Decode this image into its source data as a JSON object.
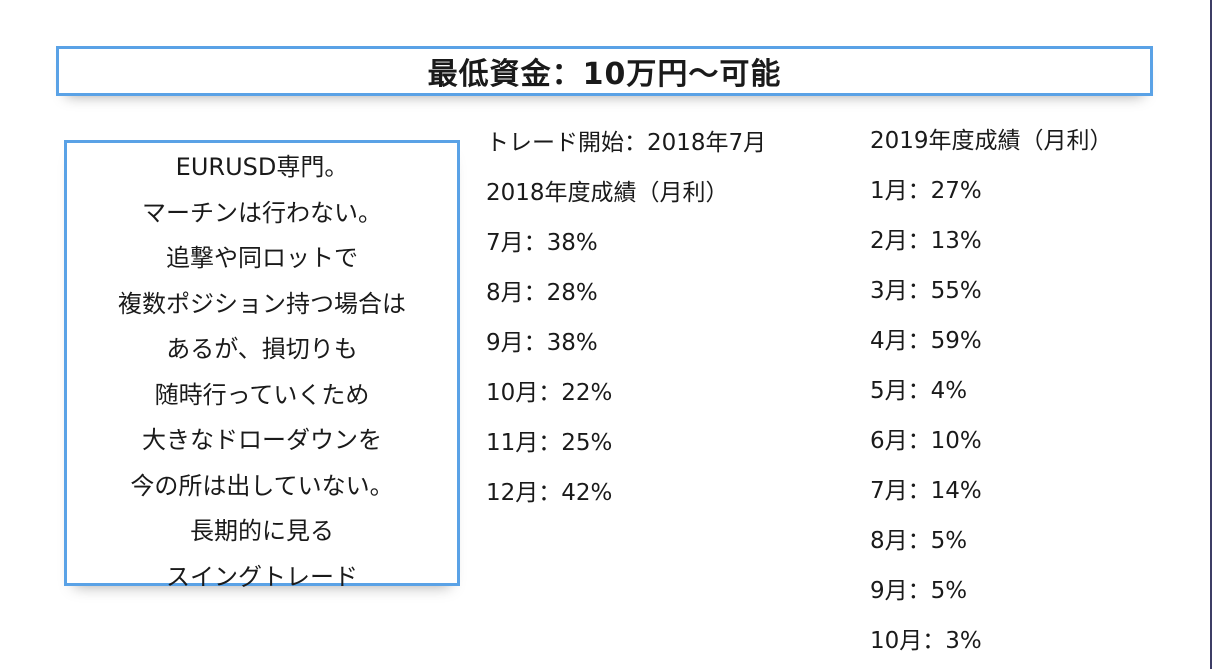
{
  "title": "最低資金：10万円〜可能",
  "description_lines": [
    "EURUSD専門。",
    "マーチンは行わない。",
    "追撃や同ロットで",
    "複数ポジション持つ場合は",
    "あるが、損切りも",
    "随時行っていくため",
    "大きなドローダウンを",
    "今の所は出していない。",
    "長期的に見る",
    "スイングトレード"
  ],
  "col_2018": {
    "start": "トレード開始：2018年7月",
    "heading": "2018年度成績（月利）",
    "months": [
      "7月：38%",
      "8月：28%",
      "9月：38%",
      "10月：22%",
      "11月：25%",
      "12月：42%"
    ]
  },
  "col_2019": {
    "heading": "2019年度成績（月利）",
    "months": [
      "1月：27%",
      "2月：13%",
      "3月：55%",
      "4月：59%",
      "5月：4%",
      "6月：10%",
      "7月：14%",
      "8月：5%",
      "9月：5%",
      "10月：3%"
    ]
  },
  "colors": {
    "box_border": "#5aa2e6",
    "text": "#1a1a1a"
  }
}
